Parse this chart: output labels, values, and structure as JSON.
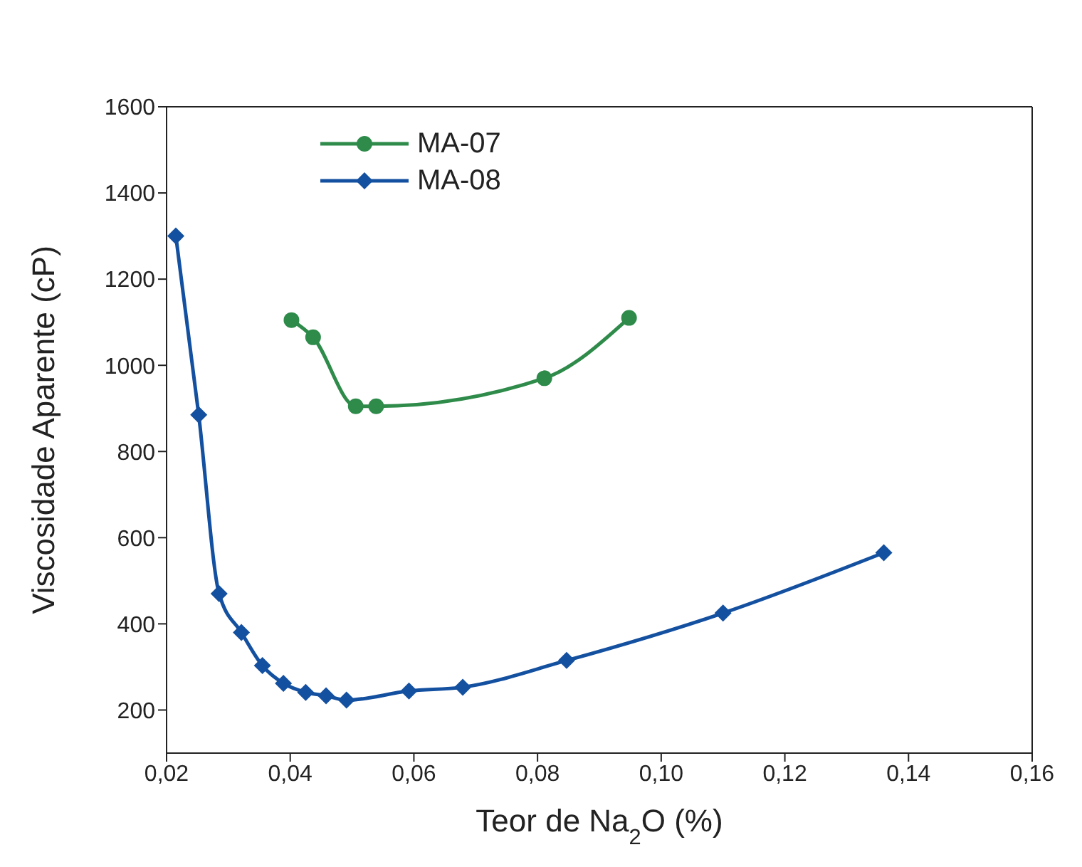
{
  "chart_data": {
    "type": "line",
    "xlabel": "Teor de Na$_{2}$O (%)",
    "ylabel": "Viscosidade Aparente (cP)",
    "xlim": [
      0.02,
      0.16
    ],
    "xticks": [
      {
        "value": 0.02,
        "label": "0,02"
      },
      {
        "value": 0.04,
        "label": "0,04"
      },
      {
        "value": 0.06,
        "label": "0,06"
      },
      {
        "value": 0.08,
        "label": "0,08"
      },
      {
        "value": 0.1,
        "label": "0,10"
      },
      {
        "value": 0.12,
        "label": "0,12"
      },
      {
        "value": 0.14,
        "label": "0,14"
      },
      {
        "value": 0.16,
        "label": "0,16"
      }
    ],
    "ylim": [
      100,
      1600
    ],
    "yticks": [
      200,
      400,
      600,
      800,
      1000,
      1200,
      1400,
      1600
    ],
    "legend": "top left",
    "series": [
      {
        "name": "MA-07",
        "color": "#2e8b4a",
        "marker": "circle",
        "x": [
          0.0402,
          0.0437,
          0.0506,
          0.0539,
          0.0811,
          0.0948
        ],
        "values": [
          1105,
          1065,
          905,
          905,
          970,
          1110
        ]
      },
      {
        "name": "MA-08",
        "color": "#1450a0",
        "marker": "diamond",
        "x": [
          0.0215,
          0.0252,
          0.0285,
          0.0321,
          0.0355,
          0.0389,
          0.0425,
          0.0458,
          0.0491,
          0.0592,
          0.0679,
          0.0847,
          0.11,
          0.136
        ],
        "values": [
          1300,
          885,
          470,
          380,
          303,
          262,
          241,
          233,
          223,
          244,
          253,
          315,
          425,
          565
        ]
      }
    ]
  }
}
